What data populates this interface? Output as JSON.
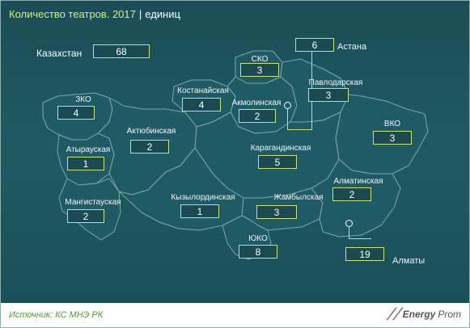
{
  "title": "Количество театров. 2017",
  "unit": "единиц",
  "country": {
    "name": "Казахстан",
    "value": "68"
  },
  "regions": [
    {
      "name": "ЗКО",
      "value": "4"
    },
    {
      "name": "Атырауская",
      "value": "1"
    },
    {
      "name": "Мангистауская",
      "value": "2"
    },
    {
      "name": "Актюбинская",
      "value": "2"
    },
    {
      "name": "Костанайская",
      "value": "4"
    },
    {
      "name": "СКО",
      "value": "3"
    },
    {
      "name": "Акмолинская",
      "value": "2"
    },
    {
      "name": "Астана",
      "value": "6"
    },
    {
      "name": "Павлодарская",
      "value": "3"
    },
    {
      "name": "ВКО",
      "value": "3"
    },
    {
      "name": "Карагандинская",
      "value": "5"
    },
    {
      "name": "Кызылординская",
      "value": "1"
    },
    {
      "name": "Жамбылская",
      "value": "3"
    },
    {
      "name": "Алматинская",
      "value": "2"
    },
    {
      "name": "ЮКО",
      "value": "8"
    },
    {
      "name": "Алматы",
      "value": "19"
    }
  ],
  "source": "Источник: КС МНЭ РК",
  "logo": {
    "a": "Energy",
    "b": "Prom"
  },
  "colors": {
    "background": "#1f5a63",
    "accent": "#c9e27c",
    "title": "#d7ef7a",
    "source": "#5a9a2a"
  }
}
